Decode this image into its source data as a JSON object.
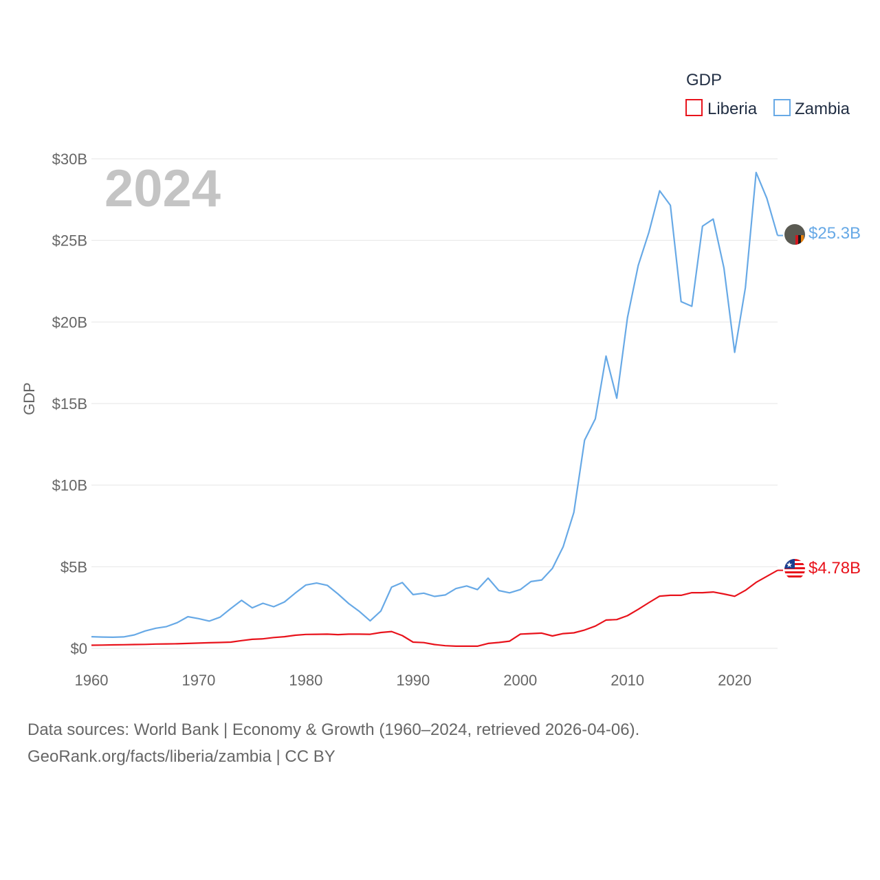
{
  "chart_data": {
    "type": "line",
    "title": "GDP",
    "ylabel": "GDP",
    "year_label": "2024",
    "ylim": [
      0,
      30000000000
    ],
    "xlim": [
      1960,
      2024
    ],
    "y_ticks": [
      {
        "value": 0,
        "label": "$0"
      },
      {
        "value": 5000000000,
        "label": "$5B"
      },
      {
        "value": 10000000000,
        "label": "$10B"
      },
      {
        "value": 15000000000,
        "label": "$15B"
      },
      {
        "value": 20000000000,
        "label": "$20B"
      },
      {
        "value": 25000000000,
        "label": "$25B"
      },
      {
        "value": 30000000000,
        "label": "$30B"
      }
    ],
    "x_ticks": [
      1960,
      1970,
      1980,
      1990,
      2000,
      2010,
      2020
    ],
    "legend": {
      "title": "GDP",
      "placement": "top-right"
    },
    "series": [
      {
        "name": "Liberia",
        "color": "#e8121b",
        "end_label": "$4.78B",
        "flag_icon": "liberia-flag-icon",
        "x": [
          1960,
          1961,
          1962,
          1963,
          1964,
          1965,
          1966,
          1967,
          1968,
          1969,
          1970,
          1971,
          1972,
          1973,
          1974,
          1975,
          1976,
          1977,
          1978,
          1979,
          1980,
          1981,
          1982,
          1983,
          1984,
          1985,
          1986,
          1987,
          1988,
          1989,
          1990,
          1991,
          1992,
          1993,
          1994,
          1995,
          1996,
          1997,
          1998,
          1999,
          2000,
          2001,
          2002,
          2003,
          2004,
          2005,
          2006,
          2007,
          2008,
          2009,
          2010,
          2011,
          2012,
          2013,
          2014,
          2015,
          2016,
          2017,
          2018,
          2019,
          2020,
          2021,
          2022,
          2023,
          2024
        ],
        "values": [
          0.19,
          0.2,
          0.21,
          0.22,
          0.23,
          0.24,
          0.26,
          0.27,
          0.28,
          0.3,
          0.32,
          0.34,
          0.36,
          0.38,
          0.47,
          0.55,
          0.58,
          0.66,
          0.71,
          0.8,
          0.85,
          0.86,
          0.87,
          0.84,
          0.87,
          0.87,
          0.86,
          0.97,
          1.03,
          0.78,
          0.38,
          0.35,
          0.23,
          0.16,
          0.13,
          0.13,
          0.13,
          0.3,
          0.36,
          0.44,
          0.87,
          0.9,
          0.93,
          0.76,
          0.9,
          0.95,
          1.12,
          1.36,
          1.73,
          1.76,
          2.0,
          2.39,
          2.8,
          3.2,
          3.25,
          3.25,
          3.41,
          3.41,
          3.45,
          3.33,
          3.19,
          3.55,
          4.04,
          4.41,
          4.78
        ]
      },
      {
        "name": "Zambia",
        "color": "#67a9e6",
        "end_label": "$25.3B",
        "flag_icon": "zambia-flag-icon",
        "x": [
          1960,
          1961,
          1962,
          1963,
          1964,
          1965,
          1966,
          1967,
          1968,
          1969,
          1970,
          1971,
          1972,
          1973,
          1974,
          1975,
          1976,
          1977,
          1978,
          1979,
          1980,
          1981,
          1982,
          1983,
          1984,
          1985,
          1986,
          1987,
          1988,
          1989,
          1990,
          1991,
          1992,
          1993,
          1994,
          1995,
          1996,
          1997,
          1998,
          1999,
          2000,
          2001,
          2002,
          2003,
          2004,
          2005,
          2006,
          2007,
          2008,
          2009,
          2010,
          2011,
          2012,
          2013,
          2014,
          2015,
          2016,
          2017,
          2018,
          2019,
          2020,
          2021,
          2022,
          2023,
          2024
        ],
        "values": [
          0.71,
          0.69,
          0.68,
          0.7,
          0.82,
          1.06,
          1.23,
          1.33,
          1.57,
          1.94,
          1.82,
          1.67,
          1.91,
          2.44,
          2.94,
          2.48,
          2.76,
          2.55,
          2.84,
          3.38,
          3.88,
          4.0,
          3.86,
          3.33,
          2.74,
          2.26,
          1.68,
          2.29,
          3.75,
          4.03,
          3.29,
          3.38,
          3.18,
          3.27,
          3.66,
          3.82,
          3.6,
          4.3,
          3.54,
          3.4,
          3.6,
          4.09,
          4.19,
          4.9,
          6.22,
          8.33,
          12.76,
          14.06,
          17.91,
          15.33,
          20.27,
          23.46,
          25.5,
          28.04,
          27.15,
          21.25,
          20.96,
          25.87,
          26.31,
          23.31,
          18.14,
          22.1,
          29.16,
          27.58,
          25.3
        ]
      }
    ]
  },
  "footer": {
    "line1": "Data sources: World Bank | Economy & Growth (1960–2024, retrieved 2026-04-06).",
    "line2": "GeoRank.org/facts/liberia/zambia | CC BY"
  }
}
